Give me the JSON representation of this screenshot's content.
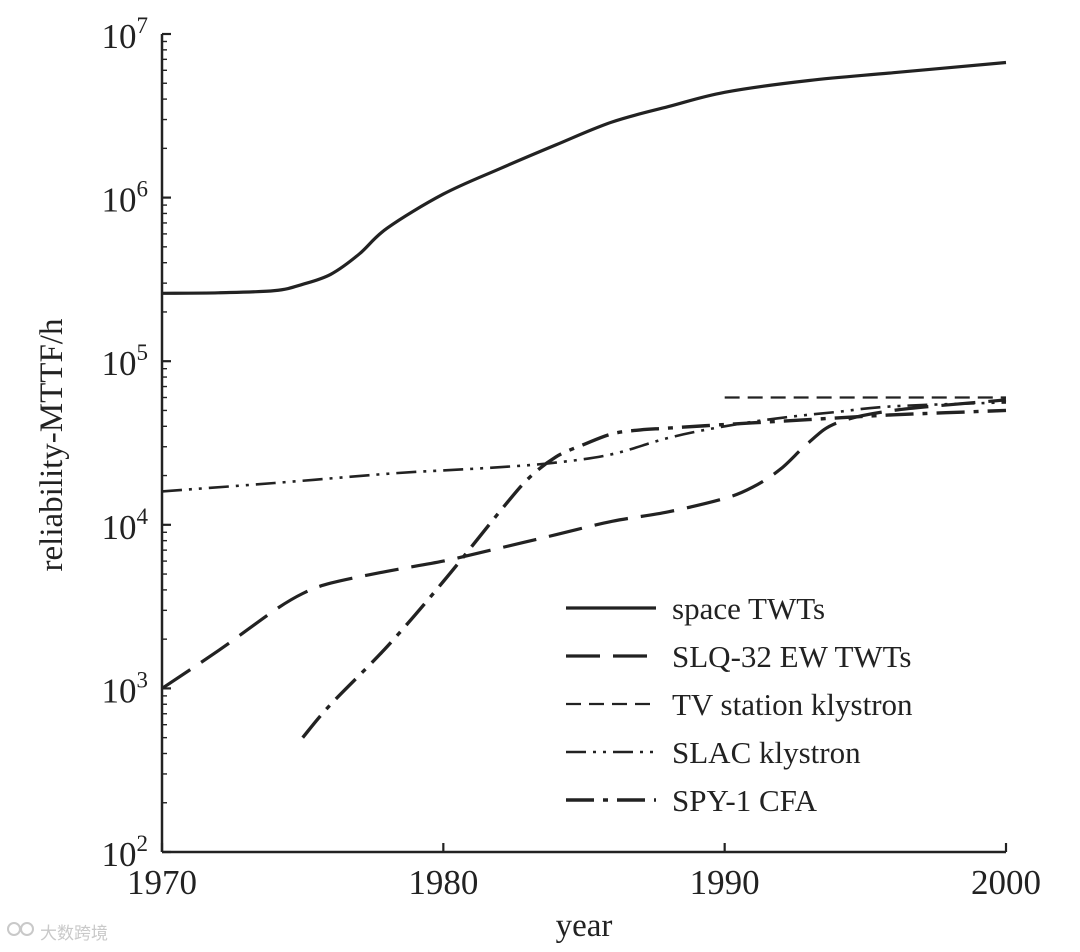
{
  "chart_data": {
    "type": "line",
    "title": "",
    "xlabel": "year",
    "ylabel": "reliability-MTTF/h",
    "xlim": [
      1970,
      2000
    ],
    "ylim": [
      100,
      10000000
    ],
    "yscale": "log",
    "x_ticks": [
      1970,
      1980,
      1990,
      2000
    ],
    "y_ticks": [
      {
        "value": 100,
        "base": "10",
        "exp": "2"
      },
      {
        "value": 1000,
        "base": "10",
        "exp": "3"
      },
      {
        "value": 10000,
        "base": "10",
        "exp": "4"
      },
      {
        "value": 100000,
        "base": "10",
        "exp": "5"
      },
      {
        "value": 1000000,
        "base": "10",
        "exp": "6"
      },
      {
        "value": 10000000,
        "base": "10",
        "exp": "7"
      }
    ],
    "legend_position": "lower-right",
    "series": [
      {
        "name": "space TWTs",
        "style": "solid",
        "x": [
          1970,
          1972,
          1974,
          1975,
          1976,
          1977,
          1978,
          1980,
          1982,
          1984,
          1986,
          1988,
          1990,
          1993,
          1996,
          2000
        ],
        "y": [
          260000,
          262000,
          270000,
          295000,
          340000,
          450000,
          650000,
          1050000,
          1500000,
          2100000,
          2900000,
          3600000,
          4400000,
          5200000,
          5800000,
          6700000
        ]
      },
      {
        "name": "SLQ-32 EW TWTs",
        "style": "long-dash",
        "x": [
          1970,
          1972,
          1974,
          1975,
          1976,
          1978,
          1980,
          1982,
          1984,
          1986,
          1988,
          1990,
          1991,
          1992,
          1993,
          1994,
          1996,
          2000
        ],
        "y": [
          1000,
          1700,
          3000,
          3800,
          4400,
          5200,
          6000,
          7200,
          8700,
          10500,
          12000,
          14500,
          17000,
          22000,
          32000,
          42000,
          50000,
          58000
        ]
      },
      {
        "name": "TV station klystron",
        "style": "short-dash",
        "x": [
          1990,
          2000
        ],
        "y": [
          60000,
          60000
        ]
      },
      {
        "name": "SLAC klystron",
        "style": "dash-dot-dot",
        "x": [
          1970,
          1974,
          1978,
          1980,
          1982,
          1984,
          1986,
          1988,
          1990,
          1992,
          1994,
          1996,
          2000
        ],
        "y": [
          16000,
          18000,
          20500,
          21500,
          22500,
          24000,
          27000,
          34000,
          40000,
          45000,
          49000,
          53000,
          56000
        ]
      },
      {
        "name": "SPY-1 CFA",
        "style": "dash-dot",
        "x": [
          1975,
          1976,
          1978,
          1980,
          1982,
          1983,
          1984,
          1985,
          1986,
          1987,
          1988,
          1990,
          1992,
          1994,
          1996,
          2000
        ],
        "y": [
          500,
          800,
          1800,
          4500,
          12000,
          19000,
          26000,
          31000,
          36000,
          38000,
          39000,
          41000,
          43000,
          45000,
          47000,
          50000
        ]
      }
    ]
  },
  "watermark": {
    "text": "大数跨境"
  }
}
